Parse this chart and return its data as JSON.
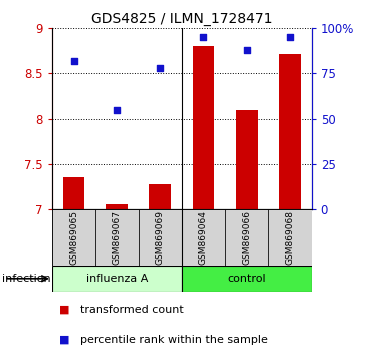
{
  "title": "GDS4825 / ILMN_1728471",
  "samples": [
    "GSM869065",
    "GSM869067",
    "GSM869069",
    "GSM869064",
    "GSM869066",
    "GSM869068"
  ],
  "red_values": [
    7.35,
    7.05,
    7.28,
    8.8,
    8.1,
    8.72
  ],
  "blue_values": [
    82,
    55,
    78,
    95,
    88,
    95
  ],
  "group_labels": [
    "influenza A",
    "control"
  ],
  "infection_label": "infection",
  "ylim_left": [
    7,
    9
  ],
  "ylim_right": [
    0,
    100
  ],
  "yticks_left": [
    7,
    7.5,
    8,
    8.5,
    9
  ],
  "ytick_labels_left": [
    "7",
    "7.5",
    "8",
    "8.5",
    "9"
  ],
  "yticks_right": [
    0,
    25,
    50,
    75,
    100
  ],
  "ytick_labels_right": [
    "0",
    "25",
    "50",
    "75",
    "100%"
  ],
  "red_color": "#cc0000",
  "blue_color": "#1111cc",
  "bar_width": 0.5,
  "legend_red": "transformed count",
  "legend_blue": "percentile rank within the sample",
  "influenza_color": "#ccffcc",
  "control_color": "#44ee44",
  "sample_box_color": "#d3d3d3"
}
